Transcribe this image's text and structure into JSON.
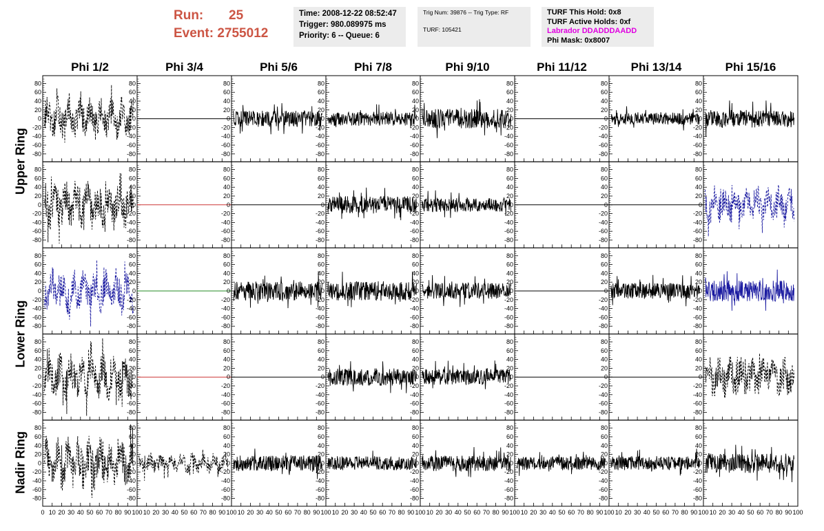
{
  "header": {
    "run_label": "Run:",
    "run_value": "25",
    "event_label": "Event:",
    "event_value": "2755012"
  },
  "info1": {
    "time": "Time: 2008-12-22 08:52:47",
    "trigger": "Trigger: 980.089975 ms",
    "priority": "Priority: 6 -- Queue: 6"
  },
  "info2": {
    "trig": "Trig Num: 39876 -- Trig Type: RF",
    "turf": "TURF: 105421"
  },
  "info3": {
    "hold": "TURF This Hold: 0x8",
    "active": "TURF Active Holds: 0xf",
    "labrador": "Labrador DDADDDAADD",
    "phimask": "Phi Mask: 0x8007"
  },
  "columns": [
    "Phi 1/2",
    "Phi 3/4",
    "Phi 5/6",
    "Phi 7/8",
    "Phi 9/10",
    "Phi 11/12",
    "Phi 13/14",
    "Phi 15/16"
  ],
  "rows": [
    "Upper Ring",
    "Lower Ring",
    "Nadir Ring"
  ],
  "chart_data": {
    "type": "line",
    "xlim": [
      0,
      100
    ],
    "ylim": [
      -90,
      90
    ],
    "y_ticks": [
      -80,
      -60,
      -40,
      -20,
      0,
      20,
      40,
      60,
      80
    ],
    "x_ticks": [
      0,
      10,
      20,
      30,
      40,
      50,
      60,
      70,
      80,
      90,
      100
    ],
    "x_tick_labels_shown": [
      "0",
      "10",
      "20",
      "30",
      "40",
      "50",
      "60",
      "70",
      "80",
      "90",
      "100"
    ],
    "colors": {
      "black": "#000000",
      "blue": "#1a1aa0",
      "red": "#cc3333",
      "green": "#228822"
    },
    "panels": [
      {
        "row": 0,
        "col": 0,
        "style": "dashed",
        "color": "black",
        "amp": 32
      },
      {
        "row": 0,
        "col": 1,
        "style": "flat",
        "color": "black",
        "amp": 0
      },
      {
        "row": 0,
        "col": 2,
        "style": "solid",
        "color": "black",
        "amp": 18
      },
      {
        "row": 0,
        "col": 3,
        "style": "solid",
        "color": "black",
        "amp": 16
      },
      {
        "row": 0,
        "col": 4,
        "style": "solid",
        "color": "black",
        "amp": 22
      },
      {
        "row": 0,
        "col": 5,
        "style": "flat",
        "color": "black",
        "amp": 0
      },
      {
        "row": 0,
        "col": 6,
        "style": "solid",
        "color": "black",
        "amp": 14
      },
      {
        "row": 0,
        "col": 7,
        "style": "solid",
        "color": "black",
        "amp": 20
      },
      {
        "row": 1,
        "col": 0,
        "style": "dashed",
        "color": "black",
        "amp": 38
      },
      {
        "row": 1,
        "col": 1,
        "style": "flat",
        "color": "red",
        "amp": 0
      },
      {
        "row": 1,
        "col": 2,
        "style": "flat",
        "color": "black",
        "amp": 0
      },
      {
        "row": 1,
        "col": 3,
        "style": "solid",
        "color": "black",
        "amp": 20
      },
      {
        "row": 1,
        "col": 4,
        "style": "solid",
        "color": "black",
        "amp": 16
      },
      {
        "row": 1,
        "col": 5,
        "style": "flat",
        "color": "black",
        "amp": 0
      },
      {
        "row": 1,
        "col": 6,
        "style": "flat",
        "color": "black",
        "amp": 0
      },
      {
        "row": 1,
        "col": 7,
        "style": "dashed",
        "color": "blue",
        "amp": 28
      },
      {
        "row": 2,
        "col": 0,
        "style": "dashed",
        "color": "blue",
        "amp": 34
      },
      {
        "row": 2,
        "col": 1,
        "style": "flat",
        "color": "green",
        "amp": 0
      },
      {
        "row": 2,
        "col": 2,
        "style": "solid",
        "color": "black",
        "amp": 22
      },
      {
        "row": 2,
        "col": 3,
        "style": "solid",
        "color": "black",
        "amp": 22
      },
      {
        "row": 2,
        "col": 4,
        "style": "solid",
        "color": "black",
        "amp": 18
      },
      {
        "row": 2,
        "col": 5,
        "style": "flat",
        "color": "black",
        "amp": 0
      },
      {
        "row": 2,
        "col": 6,
        "style": "solid",
        "color": "black",
        "amp": 18
      },
      {
        "row": 2,
        "col": 7,
        "style": "solid",
        "color": "blue",
        "amp": 24
      },
      {
        "row": 3,
        "col": 0,
        "style": "dashed",
        "color": "black",
        "amp": 36
      },
      {
        "row": 3,
        "col": 1,
        "style": "flat",
        "color": "red",
        "amp": 0
      },
      {
        "row": 3,
        "col": 2,
        "style": "flat",
        "color": "black",
        "amp": 0
      },
      {
        "row": 3,
        "col": 3,
        "style": "solid",
        "color": "black",
        "amp": 20
      },
      {
        "row": 3,
        "col": 4,
        "style": "solid",
        "color": "black",
        "amp": 18
      },
      {
        "row": 3,
        "col": 5,
        "style": "flat",
        "color": "black",
        "amp": 0
      },
      {
        "row": 3,
        "col": 6,
        "style": "flat",
        "color": "black",
        "amp": 0
      },
      {
        "row": 3,
        "col": 7,
        "style": "dashed",
        "color": "black",
        "amp": 32
      },
      {
        "row": 4,
        "col": 0,
        "style": "dashed",
        "color": "black",
        "amp": 40
      },
      {
        "row": 4,
        "col": 1,
        "style": "dashed",
        "color": "black",
        "amp": 16
      },
      {
        "row": 4,
        "col": 2,
        "style": "solid",
        "color": "black",
        "amp": 18
      },
      {
        "row": 4,
        "col": 3,
        "style": "solid",
        "color": "black",
        "amp": 16
      },
      {
        "row": 4,
        "col": 4,
        "style": "solid",
        "color": "black",
        "amp": 18
      },
      {
        "row": 4,
        "col": 5,
        "style": "solid",
        "color": "black",
        "amp": 16
      },
      {
        "row": 4,
        "col": 6,
        "style": "solid",
        "color": "black",
        "amp": 16
      },
      {
        "row": 4,
        "col": 7,
        "style": "solid",
        "color": "black",
        "amp": 22
      }
    ]
  }
}
